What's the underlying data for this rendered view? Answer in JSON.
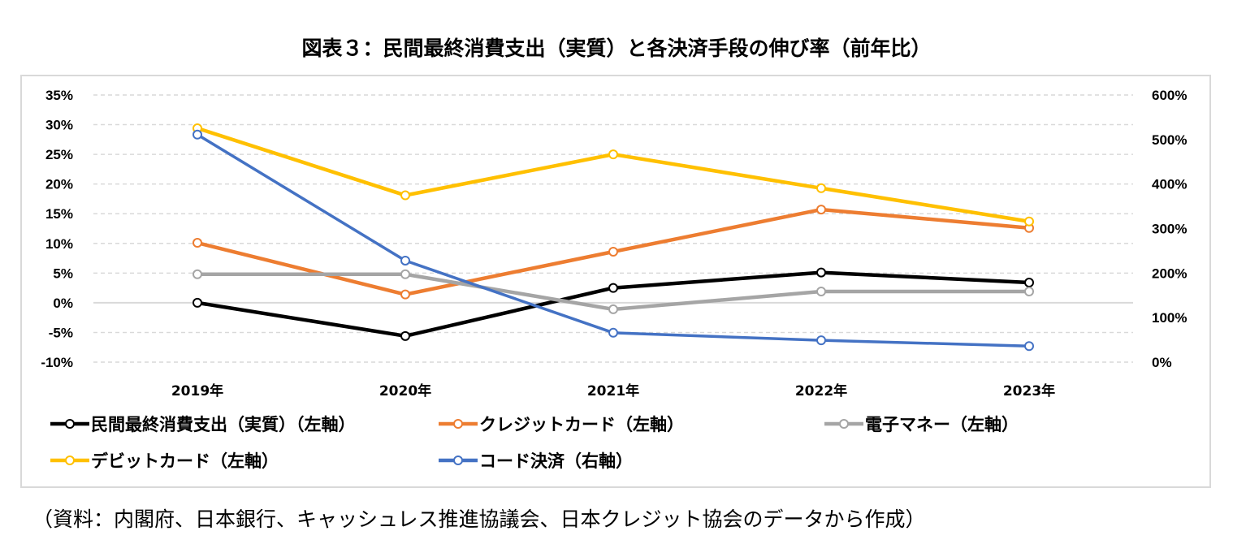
{
  "title": "図表３：民間最終消費支出（実質）と各決済手段の伸び率（前年比）",
  "source": "（資料：内閣府、日本銀行、キャッシュレス推進協議会、日本クレジット協会のデータから作成）",
  "chart_data": {
    "type": "line",
    "title": "図表３：民間最終消費支出（実質）と各決済手段の伸び率（前年比）",
    "categories": [
      "2019年",
      "2020年",
      "2021年",
      "2022年",
      "2023年"
    ],
    "y_left": {
      "range": [
        -10,
        35
      ],
      "step": 5,
      "ticks": [
        "-10%",
        "-5%",
        "0%",
        "5%",
        "10%",
        "15%",
        "20%",
        "25%",
        "30%",
        "35%"
      ]
    },
    "y_right": {
      "range": [
        0,
        600
      ],
      "step": 100,
      "ticks": [
        "0%",
        "100%",
        "200%",
        "300%",
        "400%",
        "500%",
        "600%"
      ]
    },
    "grid": true,
    "legend_position": "bottom",
    "series": [
      {
        "name": "民間最終消費支出（実質）（左軸）",
        "axis": "left",
        "color": "#000000",
        "values": [
          0.0,
          -5.6,
          2.5,
          5.1,
          3.4
        ]
      },
      {
        "name": "クレジットカード（左軸）",
        "axis": "left",
        "color": "#ED7D31",
        "values": [
          10.1,
          1.4,
          8.6,
          15.7,
          12.6
        ]
      },
      {
        "name": "電子マネー（左軸）",
        "axis": "left",
        "color": "#A5A5A5",
        "values": [
          4.8,
          4.8,
          -1.1,
          1.9,
          1.9
        ]
      },
      {
        "name": "デビットカード（左軸）",
        "axis": "left",
        "color": "#FFC000",
        "values": [
          29.4,
          18.1,
          25.0,
          19.3,
          13.7
        ]
      },
      {
        "name": "コード決済（右軸）",
        "axis": "right",
        "color": "#4472C4",
        "values": [
          511,
          228,
          66,
          49,
          36
        ]
      }
    ]
  }
}
